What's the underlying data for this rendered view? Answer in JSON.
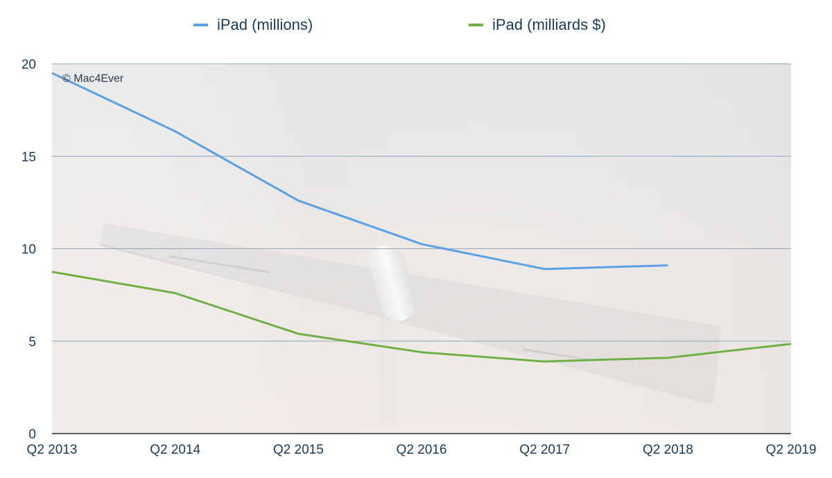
{
  "chart_data": {
    "type": "line",
    "title": "",
    "xlabel": "",
    "ylabel": "",
    "categories": [
      "Q2 2013",
      "Q2 2014",
      "Q2 2015",
      "Q2 2016",
      "Q2 2017",
      "Q2 2018",
      "Q2 2019"
    ],
    "yticks": [
      "0",
      "5",
      "10",
      "15",
      "20"
    ],
    "ylim": [
      0,
      20
    ],
    "grid": true,
    "legend_position": "top-center",
    "watermark": "© Mac4Ever",
    "series": [
      {
        "name": "iPad (millions)",
        "color": "#5a9fe8",
        "values": [
          19.5,
          16.35,
          12.6,
          10.25,
          8.9,
          9.1,
          null
        ]
      },
      {
        "name": "iPad (milliards $)",
        "color": "#6fb045",
        "values": [
          8.75,
          7.6,
          5.4,
          4.4,
          3.9,
          4.1,
          4.85
        ]
      }
    ]
  }
}
